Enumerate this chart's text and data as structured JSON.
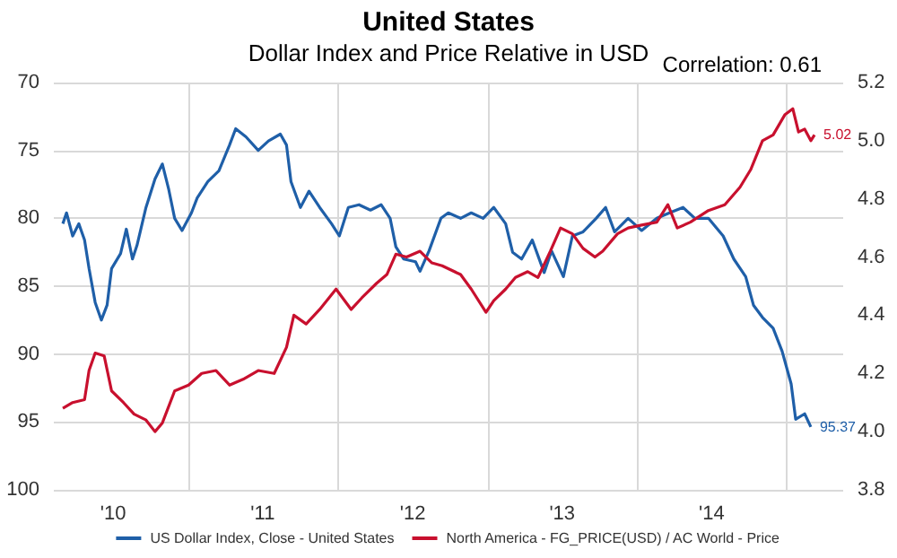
{
  "chart_data": {
    "type": "line",
    "title": "United States",
    "subtitle": "Dollar Index and Price Relative in USD",
    "annotations": [
      "Correlation: 0.61"
    ],
    "xlim": [
      "2010-02-06",
      "2015-05-18"
    ],
    "xticks": [
      {
        "value": "2010-07-01",
        "label": "'10"
      },
      {
        "value": "2011-01-01",
        "label": null
      },
      {
        "value": "2011-07-01",
        "label": "'11"
      },
      {
        "value": "2012-01-01",
        "label": null
      },
      {
        "value": "2012-07-01",
        "label": "'12"
      },
      {
        "value": "2013-01-01",
        "label": null
      },
      {
        "value": "2013-07-01",
        "label": "'13"
      },
      {
        "value": "2014-01-01",
        "label": null
      },
      {
        "value": "2014-07-01",
        "label": "'14"
      },
      {
        "value": "2015-01-01",
        "label": null
      }
    ],
    "ylim": [
      100,
      70
    ],
    "yticks": [
      70,
      75,
      80,
      85,
      90,
      95,
      100
    ],
    "y2lim": [
      3.8,
      5.2
    ],
    "y2ticks": [
      3.8,
      {
        "value": 4,
        "label": "4.0"
      },
      4.2,
      4.4,
      4.6,
      4.8,
      {
        "value": 5,
        "label": "5.0"
      },
      5.2
    ],
    "grid": true,
    "legend": "bottom",
    "series": [
      {
        "name": "US Dollar Index, Close - United States",
        "color": "#1f5fa8",
        "x": [
          "2010-02-28",
          "2010-03-09",
          "2010-03-24",
          "2010-04-08",
          "2010-04-22",
          "2010-05-03",
          "2010-05-18",
          "2010-06-02",
          "2010-06-16",
          "2010-06-27",
          "2010-07-19",
          "2010-08-02",
          "2010-08-17",
          "2010-08-28",
          "2010-09-19",
          "2010-10-11",
          "2010-10-29",
          "2010-11-13",
          "2010-11-28",
          "2010-12-16",
          "2011-01-08",
          "2011-01-22",
          "2011-02-17",
          "2011-03-16",
          "2011-04-11",
          "2011-04-26",
          "2011-05-21",
          "2011-06-20",
          "2011-07-15",
          "2011-08-13",
          "2011-08-28",
          "2011-09-08",
          "2011-10-01",
          "2011-10-22",
          "2011-11-17",
          "2011-12-16",
          "2012-01-04",
          "2012-01-26",
          "2012-02-21",
          "2012-03-20",
          "2012-04-15",
          "2012-05-07",
          "2012-05-21",
          "2012-06-09",
          "2012-07-08",
          "2012-07-19",
          "2012-08-10",
          "2012-09-08",
          "2012-09-26",
          "2012-10-26",
          "2012-11-21",
          "2012-12-20",
          "2013-01-15",
          "2013-02-13",
          "2013-03-02",
          "2013-03-24",
          "2013-04-19",
          "2013-05-18",
          "2013-06-05",
          "2013-07-04",
          "2013-07-26",
          "2013-08-21",
          "2013-09-22",
          "2013-10-15",
          "2013-11-06",
          "2013-12-09",
          "2014-01-11",
          "2014-02-17",
          "2014-03-20",
          "2014-04-22",
          "2014-05-21",
          "2014-06-23",
          "2014-07-29",
          "2014-08-24",
          "2014-09-22",
          "2014-10-11",
          "2014-11-02",
          "2014-11-28",
          "2014-12-20",
          "2015-01-11",
          "2015-01-22",
          "2015-02-13",
          "2015-02-28"
        ],
        "values": [
          80.4,
          79.6,
          81.3,
          80.4,
          81.6,
          83.7,
          86.2,
          87.5,
          86.4,
          83.7,
          82.6,
          80.8,
          83,
          82,
          79.2,
          77.1,
          76,
          77.8,
          80,
          80.9,
          79.6,
          78.5,
          77.3,
          76.5,
          74.6,
          73.4,
          74,
          75,
          74.3,
          73.8,
          74.6,
          77.3,
          79.2,
          78,
          79.2,
          80.4,
          81.3,
          79.2,
          79,
          79.4,
          79,
          80,
          82.1,
          83,
          83.2,
          83.9,
          82.4,
          80,
          79.6,
          80,
          79.6,
          80,
          79.2,
          80.4,
          82.5,
          83,
          81.6,
          84,
          82.4,
          84.3,
          81.3,
          81,
          80,
          79.2,
          81,
          80,
          80.9,
          80,
          79.6,
          79.2,
          80,
          80,
          81.3,
          83,
          84.3,
          86.4,
          87.3,
          88.1,
          89.8,
          92.2,
          94.8,
          94.4,
          95.37
        ],
        "value_labels": [
          null,
          null,
          null,
          null,
          null,
          null,
          null,
          null,
          null,
          null,
          null,
          null,
          null,
          null,
          null,
          null,
          null,
          null,
          null,
          null,
          null,
          null,
          null,
          null,
          null,
          null,
          null,
          null,
          null,
          null,
          null,
          null,
          null,
          null,
          null,
          null,
          null,
          null,
          null,
          null,
          null,
          null,
          null,
          null,
          null,
          null,
          null,
          null,
          null,
          null,
          null,
          null,
          null,
          null,
          null,
          null,
          null,
          null,
          null,
          null,
          null,
          null,
          null,
          null,
          null,
          null,
          null,
          null,
          null,
          null,
          null,
          null,
          null,
          null,
          null,
          null,
          null,
          null,
          null,
          null,
          null,
          null,
          "95.37"
        ]
      },
      {
        "name": "North America - FG_PRICE(USD) / AC World - Price",
        "color": "#c8102e",
        "axis": "y2",
        "x": [
          "2010-02-28",
          "2010-03-24",
          "2010-04-22",
          "2010-05-03",
          "2010-05-18",
          "2010-06-09",
          "2010-06-27",
          "2010-07-26",
          "2010-08-21",
          "2010-09-19",
          "2010-10-11",
          "2010-10-29",
          "2010-11-28",
          "2011-01-01",
          "2011-02-02",
          "2011-03-09",
          "2011-04-11",
          "2011-05-14",
          "2011-06-20",
          "2011-07-29",
          "2011-08-28",
          "2011-09-15",
          "2011-10-15",
          "2011-11-17",
          "2011-12-27",
          "2012-02-02",
          "2012-02-28",
          "2012-04-04",
          "2012-04-29",
          "2012-05-21",
          "2012-06-16",
          "2012-07-19",
          "2012-08-17",
          "2012-09-11",
          "2012-10-26",
          "2012-11-21",
          "2012-12-27",
          "2013-01-15",
          "2013-02-13",
          "2013-03-09",
          "2013-04-08",
          "2013-05-03",
          "2013-06-02",
          "2013-06-27",
          "2013-07-26",
          "2013-08-21",
          "2013-09-19",
          "2013-10-08",
          "2013-11-13",
          "2013-12-09",
          "2014-01-11",
          "2014-02-17",
          "2014-03-16",
          "2014-04-08",
          "2014-05-10",
          "2014-06-23",
          "2014-08-02",
          "2014-09-08",
          "2014-10-04",
          "2014-11-02",
          "2014-11-28",
          "2014-12-27",
          "2015-01-15",
          "2015-01-29",
          "2015-02-13",
          "2015-02-28",
          "2015-03-09"
        ],
        "values": [
          4.08,
          4.1,
          4.11,
          4.21,
          4.27,
          4.26,
          4.14,
          4.1,
          4.06,
          4.04,
          4.0,
          4.03,
          4.14,
          4.16,
          4.2,
          4.21,
          4.16,
          4.18,
          4.21,
          4.2,
          4.29,
          4.4,
          4.37,
          4.42,
          4.49,
          4.42,
          4.46,
          4.51,
          4.54,
          4.61,
          4.6,
          4.62,
          4.58,
          4.57,
          4.54,
          4.49,
          4.41,
          4.45,
          4.49,
          4.53,
          4.55,
          4.53,
          4.62,
          4.7,
          4.68,
          4.63,
          4.6,
          4.62,
          4.68,
          4.7,
          4.71,
          4.72,
          4.78,
          4.7,
          4.72,
          4.76,
          4.78,
          4.84,
          4.9,
          5.0,
          5.02,
          5.09,
          5.11,
          5.03,
          5.04,
          5.0,
          5.02
        ],
        "value_labels": [
          null,
          null,
          null,
          null,
          null,
          null,
          null,
          null,
          null,
          null,
          null,
          null,
          null,
          null,
          null,
          null,
          null,
          null,
          null,
          null,
          null,
          null,
          null,
          null,
          null,
          null,
          null,
          null,
          null,
          null,
          null,
          null,
          null,
          null,
          null,
          null,
          null,
          null,
          null,
          null,
          null,
          null,
          null,
          null,
          null,
          null,
          null,
          null,
          null,
          null,
          null,
          null,
          null,
          null,
          null,
          null,
          null,
          null,
          null,
          null,
          null,
          null,
          null,
          null,
          null,
          null,
          "5.02"
        ]
      }
    ]
  }
}
